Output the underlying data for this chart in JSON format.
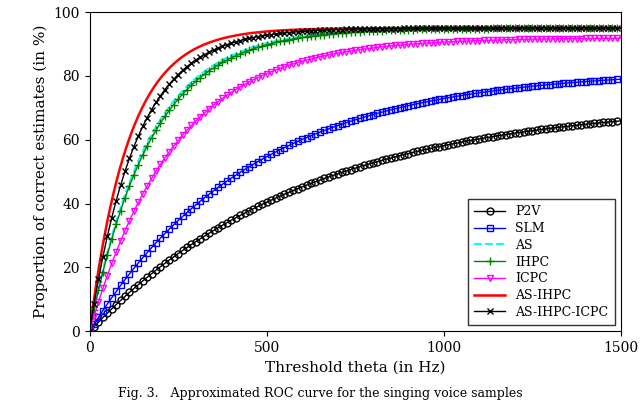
{
  "xlabel": "Threshold theta (in Hz)",
  "ylabel": "Proportion of correct estimates (in %)",
  "xlim": [
    0,
    1500
  ],
  "ylim": [
    0,
    100
  ],
  "xticks": [
    0,
    500,
    1000,
    1500
  ],
  "yticks": [
    0,
    20,
    40,
    60,
    80,
    100
  ],
  "figure_caption": "Fig. 3.   Approximated ROC curve for the singing voice samples",
  "curves": [
    {
      "label": "P2V",
      "color": "black",
      "linestyle": "-",
      "marker": "o",
      "markevery": 25,
      "markersize": 5,
      "linewidth": 1.0,
      "open_marker": true,
      "params": {
        "a": 72,
        "b": 0.00165
      }
    },
    {
      "label": "SLM",
      "color": "blue",
      "linestyle": "-",
      "marker": "s",
      "markevery": 25,
      "markersize": 5,
      "linewidth": 1.0,
      "open_marker": true,
      "params": {
        "a": 82,
        "b": 0.0022
      }
    },
    {
      "label": "AS",
      "color": "cyan",
      "linestyle": "--",
      "marker": null,
      "markevery": null,
      "markersize": 4,
      "linewidth": 1.5,
      "open_marker": false,
      "params": {
        "a": 95,
        "b": 0.006
      }
    },
    {
      "label": "IHPC",
      "color": "green",
      "linestyle": "-",
      "marker": "+",
      "markevery": 25,
      "markersize": 6,
      "linewidth": 1.0,
      "open_marker": false,
      "params": {
        "a": 95,
        "b": 0.0058
      }
    },
    {
      "label": "ICPC",
      "color": "magenta",
      "linestyle": "-",
      "marker": "v",
      "markevery": 25,
      "markersize": 5,
      "linewidth": 1.0,
      "open_marker": true,
      "params": {
        "a": 92,
        "b": 0.0042
      }
    },
    {
      "label": "AS-IHPC",
      "color": "red",
      "linestyle": "-",
      "marker": null,
      "markevery": null,
      "markersize": 4,
      "linewidth": 1.8,
      "open_marker": false,
      "params": {
        "a": 95,
        "b": 0.009
      }
    },
    {
      "label": "AS-IHPC-ICPC",
      "color": "black",
      "linestyle": "-",
      "marker": "x",
      "markevery": 25,
      "markersize": 5,
      "linewidth": 1.0,
      "open_marker": false,
      "params": {
        "a": 95,
        "b": 0.0075
      }
    }
  ],
  "legend_loc": "lower right",
  "font_family": "serif"
}
